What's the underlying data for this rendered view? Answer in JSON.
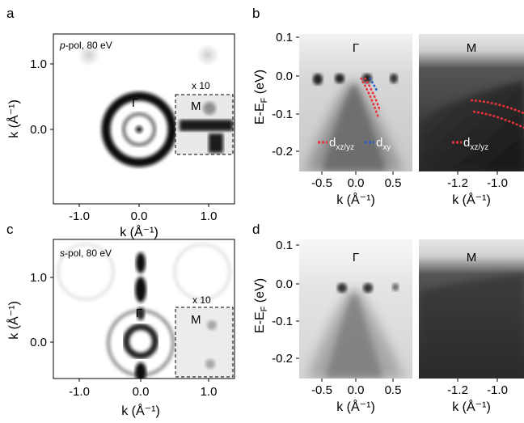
{
  "figure": {
    "panels": {
      "a": {
        "letter": "a",
        "pol_letter": "p",
        "pol_rest": "-pol, 80 eV",
        "gamma_label": "Γ",
        "inset_label": "M",
        "inset_scale": "x 10",
        "xticks": [
          "-1.0",
          "0.0",
          "1.0"
        ],
        "yticks": [
          "1.0",
          "0.0"
        ],
        "xlabel": "k (Å⁻¹)",
        "ylabel": "k (Å⁻¹)"
      },
      "b": {
        "letter": "b",
        "left_title": "Γ",
        "right_title": "M",
        "yticks": [
          "0.1",
          "0.0",
          "-0.1",
          "-0.2"
        ],
        "left_xticks": [
          "-0.5",
          "0.0",
          "0.5"
        ],
        "right_xticks": [
          "-1.2",
          "-1.0"
        ],
        "xlabel_left": "k (Å⁻¹)",
        "xlabel_right": "k (Å⁻¹)",
        "ylabel_main": "E-E",
        "ylabel_sub": "F",
        "ylabel_unit": " (eV)",
        "legend_dxz_main": "d",
        "legend_dxz_sub": "xz/yz",
        "legend_dxy_main": "d",
        "legend_dxy_sub": "xy",
        "legend2_main": "d",
        "legend2_sub": "xz/yz",
        "colors": {
          "dxz": "#e8323c",
          "dxy": "#2b5fc4"
        }
      },
      "c": {
        "letter": "c",
        "pol_letter": "s",
        "pol_rest": "-pol, 80 eV",
        "gamma_label": "Γ",
        "inset_label": "M",
        "inset_scale": "x 10",
        "xticks": [
          "-1.0",
          "0.0",
          "1.0"
        ],
        "yticks": [
          "1.0",
          "0.0"
        ],
        "xlabel": "k (Å⁻¹)",
        "ylabel": "k (Å⁻¹)"
      },
      "d": {
        "letter": "d",
        "left_title": "Γ",
        "right_title": "M",
        "yticks": [
          "0.1",
          "0.0",
          "-0.1",
          "-0.2"
        ],
        "left_xticks": [
          "-0.5",
          "0.0",
          "0.5"
        ],
        "right_xticks": [
          "-1.2",
          "-1.0"
        ],
        "xlabel_left": "k (Å⁻¹)",
        "xlabel_right": "k (Å⁻¹)",
        "ylabel_main": "E-E",
        "ylabel_sub": "F",
        "ylabel_unit": " (eV)"
      }
    }
  }
}
